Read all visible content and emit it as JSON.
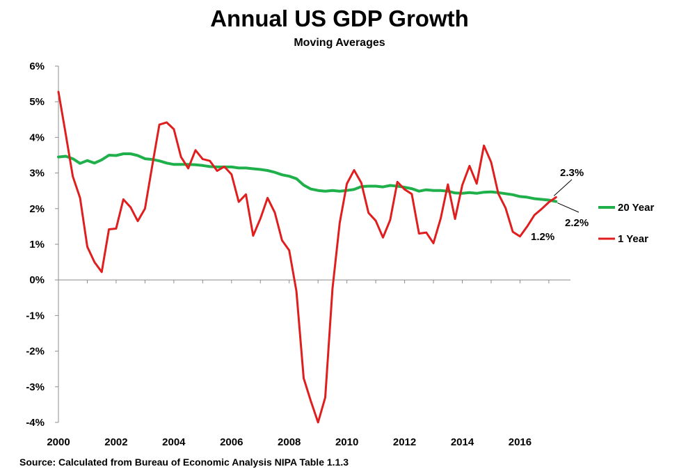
{
  "chart_data": {
    "type": "line",
    "title": "Annual US GDP Growth",
    "subtitle": "Moving Averages",
    "source": "Source: Calculated  from Bureau of Economic Analysis NIPA Table  1.1.3",
    "xlim": [
      2000,
      2017.75
    ],
    "ylim": [
      -4,
      6
    ],
    "x_ticks": [
      {
        "value": 2000,
        "label": "2000"
      },
      {
        "value": 2002,
        "label": "2002"
      },
      {
        "value": 2004,
        "label": "2004"
      },
      {
        "value": 2006,
        "label": "2006"
      },
      {
        "value": 2008,
        "label": "2008"
      },
      {
        "value": 2010,
        "label": "2010"
      },
      {
        "value": 2012,
        "label": "2012"
      },
      {
        "value": 2014,
        "label": "2014"
      },
      {
        "value": 2016,
        "label": "2016"
      }
    ],
    "y_ticks": [
      {
        "value": 6,
        "label": "6%"
      },
      {
        "value": 5,
        "label": "5%"
      },
      {
        "value": 4,
        "label": "4%"
      },
      {
        "value": 3,
        "label": "3%"
      },
      {
        "value": 2,
        "label": "2%"
      },
      {
        "value": 1,
        "label": "1%"
      },
      {
        "value": 0,
        "label": "0%"
      },
      {
        "value": -1,
        "label": "-1%"
      },
      {
        "value": -2,
        "label": "-2%"
      },
      {
        "value": -3,
        "label": "-3%"
      },
      {
        "value": -4,
        "label": "-4%"
      }
    ],
    "x": [
      2000.0,
      2000.25,
      2000.5,
      2000.75,
      2001.0,
      2001.25,
      2001.5,
      2001.75,
      2002.0,
      2002.25,
      2002.5,
      2002.75,
      2003.0,
      2003.25,
      2003.5,
      2003.75,
      2004.0,
      2004.25,
      2004.5,
      2004.75,
      2005.0,
      2005.25,
      2005.5,
      2005.75,
      2006.0,
      2006.25,
      2006.5,
      2006.75,
      2007.0,
      2007.25,
      2007.5,
      2007.75,
      2008.0,
      2008.25,
      2008.5,
      2008.75,
      2009.0,
      2009.25,
      2009.5,
      2009.75,
      2010.0,
      2010.25,
      2010.5,
      2010.75,
      2011.0,
      2011.25,
      2011.5,
      2011.75,
      2012.0,
      2012.25,
      2012.5,
      2012.75,
      2013.0,
      2013.25,
      2013.5,
      2013.75,
      2014.0,
      2014.25,
      2014.5,
      2014.75,
      2015.0,
      2015.25,
      2015.5,
      2015.75,
      2016.0,
      2016.25,
      2016.5,
      2016.75,
      2017.0,
      2017.25
    ],
    "series": [
      {
        "name": "20 Year",
        "color": "#1fb04b",
        "values": [
          3.45,
          3.47,
          3.4,
          3.27,
          3.35,
          3.28,
          3.37,
          3.5,
          3.49,
          3.54,
          3.54,
          3.49,
          3.4,
          3.38,
          3.34,
          3.28,
          3.24,
          3.24,
          3.24,
          3.23,
          3.21,
          3.18,
          3.17,
          3.17,
          3.17,
          3.14,
          3.14,
          3.12,
          3.1,
          3.07,
          3.02,
          2.95,
          2.91,
          2.84,
          2.66,
          2.55,
          2.51,
          2.49,
          2.51,
          2.49,
          2.51,
          2.54,
          2.62,
          2.63,
          2.63,
          2.61,
          2.65,
          2.63,
          2.6,
          2.56,
          2.49,
          2.53,
          2.51,
          2.51,
          2.49,
          2.44,
          2.43,
          2.45,
          2.43,
          2.46,
          2.47,
          2.45,
          2.42,
          2.39,
          2.34,
          2.32,
          2.28,
          2.26,
          2.24,
          2.2
        ],
        "end_label": "2.2%"
      },
      {
        "name": "1 Year",
        "color": "#e01e1e",
        "values": [
          5.28,
          4.1,
          2.9,
          2.3,
          0.93,
          0.5,
          0.22,
          1.42,
          1.44,
          2.26,
          2.04,
          1.65,
          2.0,
          3.2,
          4.36,
          4.42,
          4.23,
          3.45,
          3.13,
          3.64,
          3.39,
          3.34,
          3.06,
          3.18,
          2.96,
          2.19,
          2.4,
          1.24,
          1.72,
          2.3,
          1.89,
          1.11,
          0.83,
          -0.32,
          -2.76,
          -3.4,
          -4.0,
          -3.3,
          -0.25,
          1.6,
          2.7,
          3.08,
          2.72,
          1.88,
          1.66,
          1.19,
          1.68,
          2.75,
          2.54,
          2.41,
          1.3,
          1.33,
          1.03,
          1.72,
          2.68,
          1.71,
          2.66,
          3.2,
          2.7,
          3.77,
          3.3,
          2.42,
          2.02,
          1.35,
          1.22,
          1.5,
          1.82,
          1.99,
          2.18,
          2.32
        ],
        "min_label": "1.2%",
        "end_label": "2.3%"
      }
    ],
    "legend": {
      "position": "right",
      "items": [
        "20 Year",
        "1 Year"
      ]
    }
  }
}
